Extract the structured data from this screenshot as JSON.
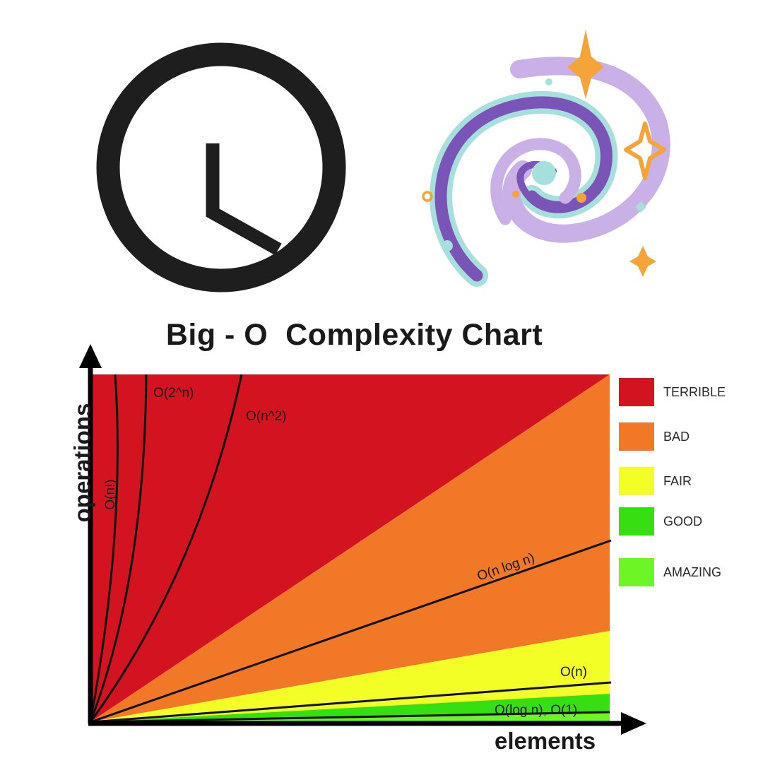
{
  "chart_data": {
    "type": "area",
    "title": "Big - O  Complexity Chart",
    "xlabel": "elements",
    "ylabel": "operations",
    "grid": false,
    "legend_position": "right",
    "regions": [
      {
        "label": "TERRIBLE",
        "color": "#d3131f"
      },
      {
        "label": "BAD",
        "color": "#f07826"
      },
      {
        "label": "FAIR",
        "color": "#f3fd26"
      },
      {
        "label": "GOOD",
        "color": "#35df12"
      },
      {
        "label": "AMAZING",
        "color": "#6df526"
      }
    ],
    "series": [
      {
        "name": "O(n!)"
      },
      {
        "name": "O(2^n)"
      },
      {
        "name": "O(n^2)"
      },
      {
        "name": "O(n log n)"
      },
      {
        "name": "O(n)"
      },
      {
        "name": "O(log n), O(1)"
      }
    ]
  },
  "icons": {
    "clock": "clock-icon",
    "galaxy": "galaxy-icon",
    "stroke_color": "#1e1e1e",
    "galaxy_colors": {
      "purple": "#7b54b8",
      "lavender": "#c9b0e6",
      "teal": "#a6e0dc",
      "gold": "#f5a43a"
    }
  }
}
